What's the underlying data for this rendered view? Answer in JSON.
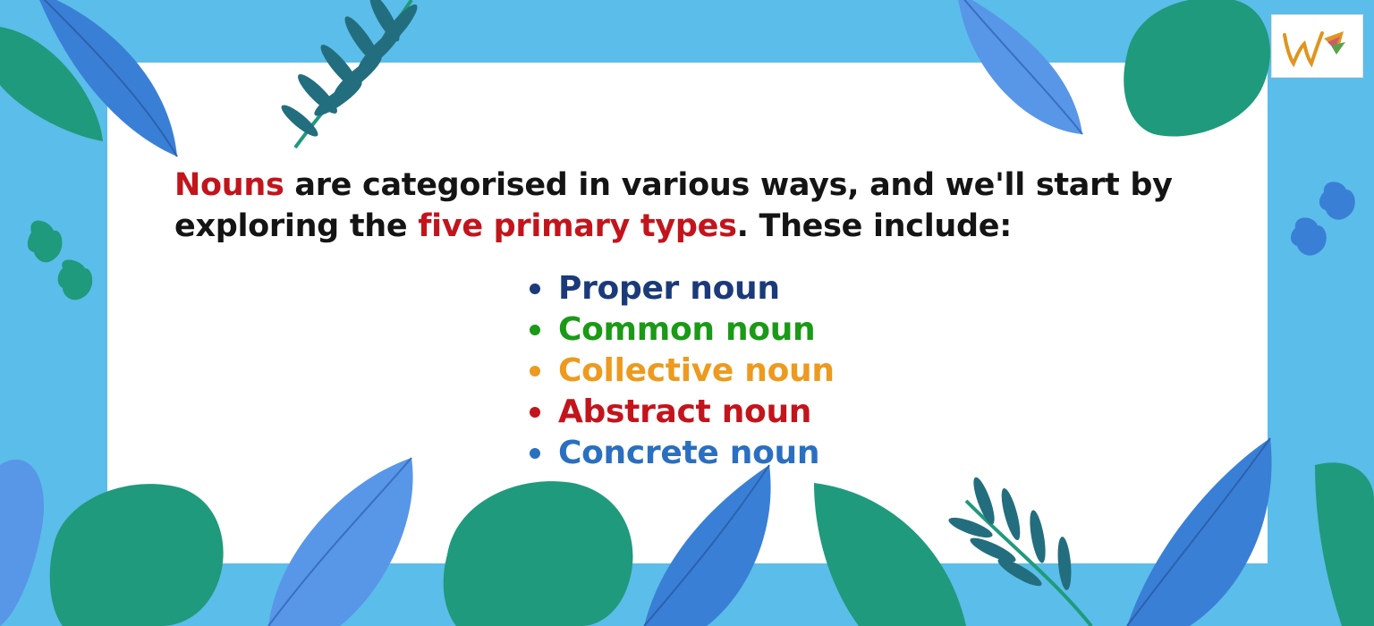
{
  "intro": {
    "part1": "Nouns",
    "part2": " are categorised in various ways, and we'll start by exploring the ",
    "part3": "five primary types",
    "part4": ". These include:"
  },
  "noun_types": [
    {
      "label": "Proper noun",
      "color": "#1b3a7a"
    },
    {
      "label": "Common noun",
      "color": "#1a9a16"
    },
    {
      "label": "Collective noun",
      "color": "#ed9a1e"
    },
    {
      "label": "Abstract noun",
      "color": "#c3141c"
    },
    {
      "label": "Concrete noun",
      "color": "#2a6fc0"
    }
  ],
  "colors": {
    "background": "#5bbde9",
    "card": "#ffffff",
    "highlight": "#c3141c",
    "leaf_teal": "#1f9a7c",
    "leaf_dark_teal": "#236e7e",
    "leaf_blue": "#3a7fd6",
    "leaf_light_blue": "#5896e8"
  },
  "logo": {
    "icon": "brand-logo-icon"
  }
}
